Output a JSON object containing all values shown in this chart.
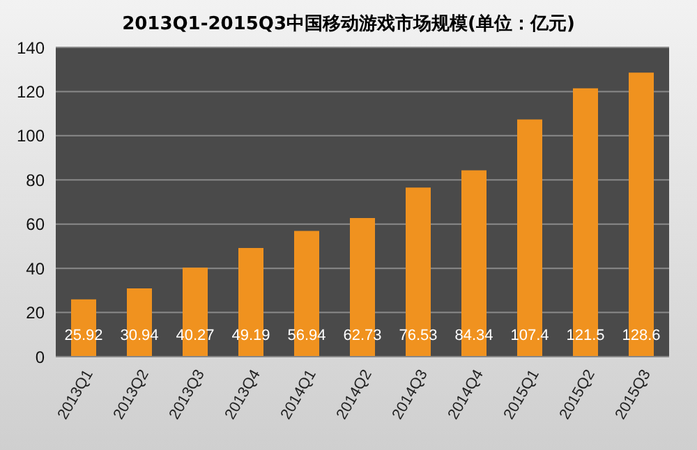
{
  "chart_data": {
    "type": "bar",
    "title": "2013Q1-2015Q3中国移动游戏市场规模(单位：亿元)",
    "categories": [
      "2013Q1",
      "2013Q2",
      "2013Q3",
      "2013Q4",
      "2014Q1",
      "2014Q2",
      "2014Q3",
      "2014Q4",
      "2015Q1",
      "2015Q2",
      "2015Q3"
    ],
    "values": [
      25.92,
      30.94,
      40.27,
      49.19,
      56.94,
      62.73,
      76.53,
      84.34,
      107.4,
      121.5,
      128.6
    ],
    "color": "#f0921f",
    "ylim": [
      0,
      140
    ],
    "yticks": [
      0,
      20,
      40,
      60,
      80,
      100,
      120,
      140
    ],
    "grid": "y",
    "data_labels": true
  }
}
